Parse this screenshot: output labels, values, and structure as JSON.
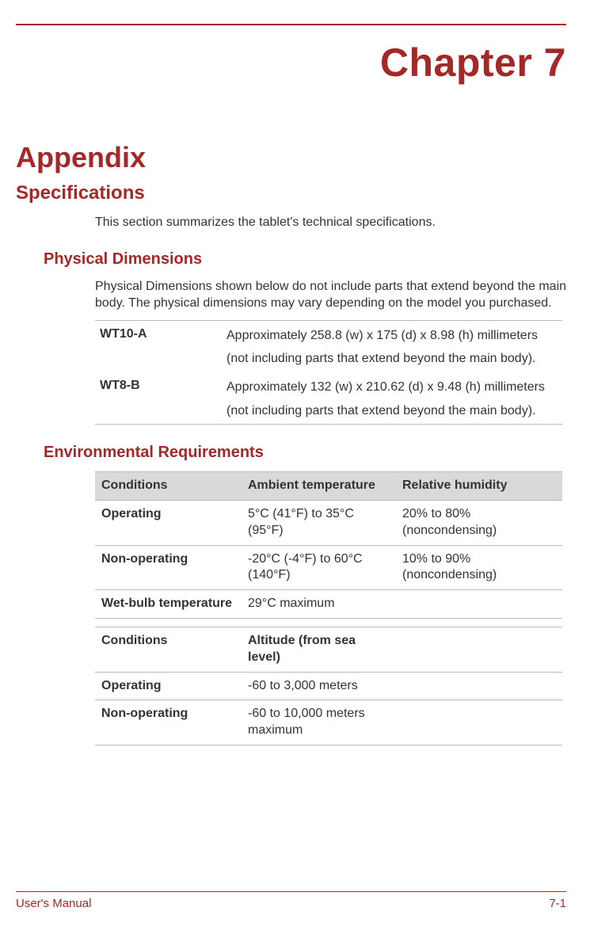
{
  "chapter_title": "Chapter 7",
  "h1": "Appendix",
  "h2": "Specifications",
  "intro": "This section summarizes the tablet's technical specifications.",
  "phys": {
    "heading": "Physical Dimensions",
    "text": "Physical Dimensions shown below do not include parts that extend beyond the main body. The physical dimensions may vary depending on the model you purchased.",
    "rows": [
      {
        "label": "WT10-A",
        "line1": "Approximately 258.8 (w) x 175 (d) x 8.98 (h) millimeters",
        "line2": "(not including parts that extend beyond the main body)."
      },
      {
        "label": "WT8-B",
        "line1": "Approximately 132 (w) x 210.62 (d) x 9.48 (h) millimeters",
        "line2": "(not including parts that extend beyond the main body)."
      }
    ]
  },
  "env": {
    "heading": "Environmental Requirements",
    "table1": {
      "header": [
        "Conditions",
        "Ambient temperature",
        "Relative humidity"
      ],
      "rows": [
        [
          "Operating",
          "5°C (41°F) to 35°C (95°F)",
          "20% to 80% (noncondensing)"
        ],
        [
          "Non-operating",
          "-20°C (-4°F) to 60°C (140°F)",
          "10% to 90% (noncondensing)"
        ],
        [
          "Wet-bulb temperature",
          "29°C maximum",
          ""
        ]
      ]
    },
    "table2": {
      "header": [
        "Conditions",
        "Altitude (from sea level)",
        ""
      ],
      "rows": [
        [
          "Operating",
          "-60 to 3,000 meters",
          ""
        ],
        [
          "Non-operating",
          "-60 to 10,000 meters maximum",
          ""
        ]
      ]
    }
  },
  "footer": {
    "left": "User's Manual",
    "right": "7-1"
  },
  "colors": {
    "accent": "#a52828",
    "header_bg": "#d9d9d9",
    "rule": "#bbbbbb",
    "text": "#333333"
  }
}
